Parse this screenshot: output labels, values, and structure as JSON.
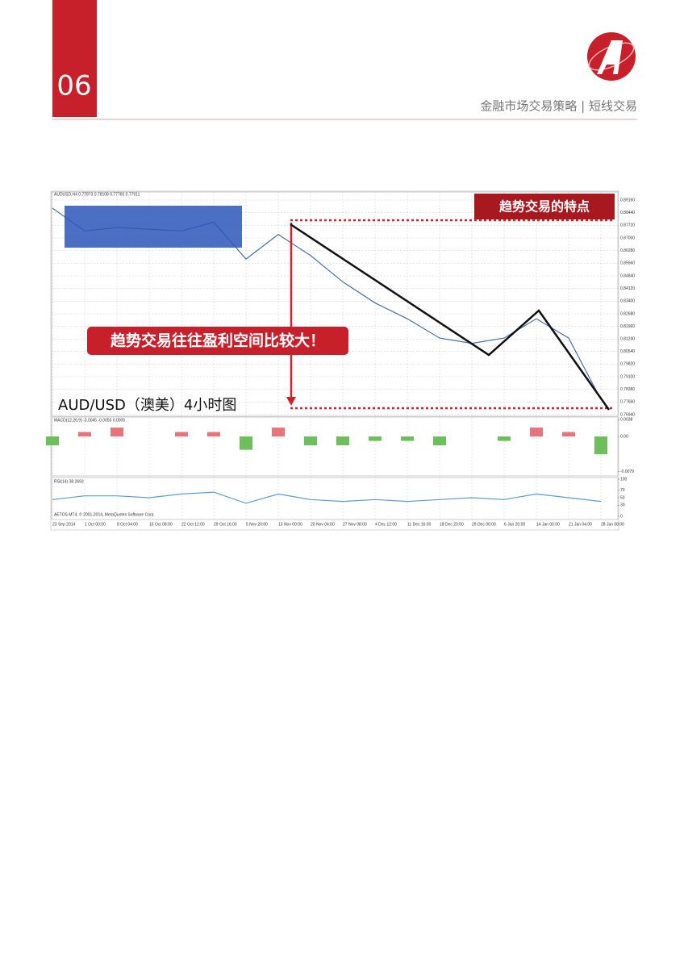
{
  "header": {
    "page_number": "06",
    "section": "金融市场交易策略 | 短线交易"
  },
  "annotations": {
    "tag": "趋势交易的特点",
    "callout": "趋势交易往往盈利空间比较大！",
    "caption": "AUD/USD（澳美）4小时图"
  },
  "copyright": "AETOS MT4, © 2001-2014, MetaQuotes Software Corp.",
  "chart_data": [
    {
      "type": "line",
      "title": "AUDUSD,H4 0.77873 0.78108 0.77760 0.77911",
      "color": "#4a6fa5",
      "categories": [
        "23 Sep 2014",
        "1 Oct 00:00",
        "8 Oct 04:00",
        "15 Oct 08:00",
        "22 Oct 12:00",
        "29 Oct 16:00",
        "5 Nov 20:00",
        "13 Nov 00:00",
        "20 Nov 04:00",
        "27 Nov 08:00",
        "4 Dec 12:00",
        "11 Dec 16:00",
        "18 Dec 20:00",
        "29 Dec 00:00",
        "6 Jan 20:00",
        "14 Jan 00:00",
        "21 Jan 04:00",
        "28 Jan 08:00"
      ],
      "values": [
        0.887,
        0.874,
        0.876,
        0.875,
        0.874,
        0.879,
        0.858,
        0.872,
        0.86,
        0.845,
        0.833,
        0.824,
        0.813,
        0.81,
        0.813,
        0.824,
        0.813,
        0.778
      ],
      "ylim": [
        0.7694,
        0.8916
      ],
      "yticks": [
        {
          "value": 0.8916,
          "label": "0.89160"
        },
        {
          "value": 0.8844,
          "label": "0.88440"
        },
        {
          "value": 0.8772,
          "label": "0.87720"
        },
        {
          "value": 0.87,
          "label": "0.87000"
        },
        {
          "value": 0.8628,
          "label": "0.86280"
        },
        {
          "value": 0.8556,
          "label": "0.85560"
        },
        {
          "value": 0.8484,
          "label": "0.84840"
        },
        {
          "value": 0.8412,
          "label": "0.84120"
        },
        {
          "value": 0.834,
          "label": "0.83400"
        },
        {
          "value": 0.8268,
          "label": "0.82680"
        },
        {
          "value": 0.8196,
          "label": "0.81960"
        },
        {
          "value": 0.8124,
          "label": "0.81240"
        },
        {
          "value": 0.8054,
          "label": "0.80540"
        },
        {
          "value": 0.7982,
          "label": "0.79820"
        },
        {
          "value": 0.791,
          "label": "0.79100"
        },
        {
          "value": 0.7838,
          "label": "0.78380"
        },
        {
          "value": 0.7766,
          "label": "0.77660"
        },
        {
          "value": 0.7694,
          "label": "0.76940"
        }
      ],
      "grid": true
    },
    {
      "type": "bar",
      "title": "MACD(12,26,9) -0.0045 -0.0050 0.0005",
      "colors": {
        "positive": "#e8737a",
        "negative": "#6cbf5a"
      },
      "values": [
        -0.002,
        0.001,
        0.002,
        0,
        0.001,
        0.001,
        -0.003,
        0.002,
        -0.002,
        -0.002,
        -0.001,
        -0.001,
        -0.002,
        0,
        -0.001,
        0.002,
        0.001,
        -0.004
      ],
      "ylim": [
        -0.0089,
        0.0042
      ],
      "yticks": [
        0.0038,
        {
          "value": 0,
          "label": "0.00"
        },
        -0.0079
      ]
    },
    {
      "type": "line",
      "title": "RSI(14) 38.2693",
      "color": "#5b9bd5",
      "values": [
        45,
        55,
        55,
        50,
        60,
        65,
        35,
        60,
        45,
        40,
        45,
        40,
        45,
        50,
        45,
        60,
        50,
        40
      ],
      "ylim": [
        0,
        100
      ],
      "yticks": [
        100,
        70,
        50,
        30,
        0
      ]
    }
  ]
}
